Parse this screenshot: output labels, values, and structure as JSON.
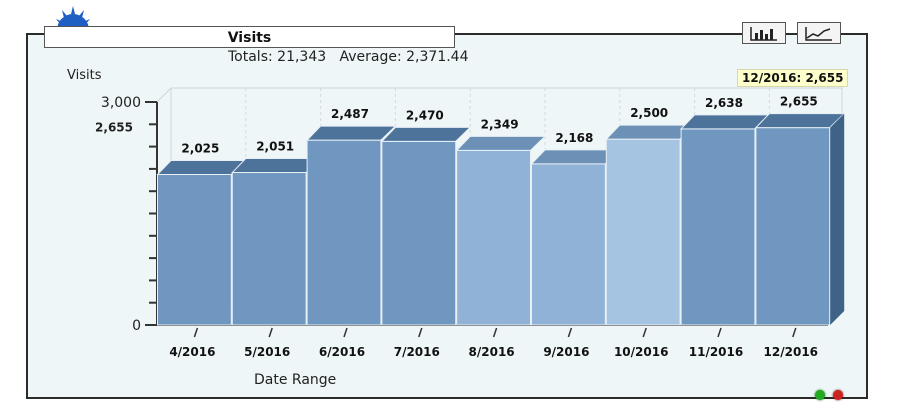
{
  "header": {
    "title": "Visits",
    "totals_line": "Totals: 21,343   Average: 2,371.44"
  },
  "toolbar": {
    "bar_chart_icon": "bar-chart-icon",
    "line_chart_icon": "line-chart-icon"
  },
  "tooltip": "12/2016: 2,655",
  "colors": {
    "bar_front": "#6f97c0",
    "bar_top": "#4d739b",
    "bar_side": "#3f6386",
    "panel_bg": "#eef6f8",
    "tooltip_bg": "#ffffcc",
    "light_green": "#22aa22",
    "light_red": "#cc2222"
  },
  "chart_data": {
    "type": "bar",
    "title": "Visits",
    "xlabel": "Date Range",
    "ylabel": "Visits",
    "categories": [
      "4/2016",
      "5/2016",
      "6/2016",
      "7/2016",
      "8/2016",
      "9/2016",
      "10/2016",
      "11/2016",
      "12/2016"
    ],
    "values": [
      2025,
      2051,
      2487,
      2470,
      2349,
      2168,
      2500,
      2638,
      2655
    ],
    "value_labels": [
      "2,025",
      "2,051",
      "2,487",
      "2,470",
      "2,349",
      "2,168",
      "2,500",
      "2,638",
      "2,655"
    ],
    "ylim": [
      0,
      3000
    ],
    "y_tick_labels": [
      "0",
      "3,000"
    ],
    "y_highlight_label": "2,655",
    "y_highlight_value": 2655,
    "grid": true,
    "legend": "none"
  }
}
